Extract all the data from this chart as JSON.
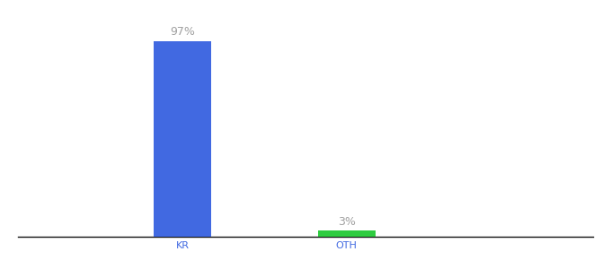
{
  "categories": [
    "KR",
    "OTH"
  ],
  "values": [
    97,
    3
  ],
  "bar_colors": [
    "#4169e1",
    "#2ecc40"
  ],
  "labels": [
    "97%",
    "3%"
  ],
  "label_color": "#a0a0a0",
  "label_fontsize": 9,
  "tick_color": "#4169e1",
  "tick_fontsize": 8,
  "ylim": [
    0,
    108
  ],
  "background_color": "#ffffff",
  "axis_line_color": "#111111",
  "bar_width": 0.35,
  "x_positions": [
    1,
    2
  ],
  "xlim": [
    0.0,
    3.5
  ]
}
